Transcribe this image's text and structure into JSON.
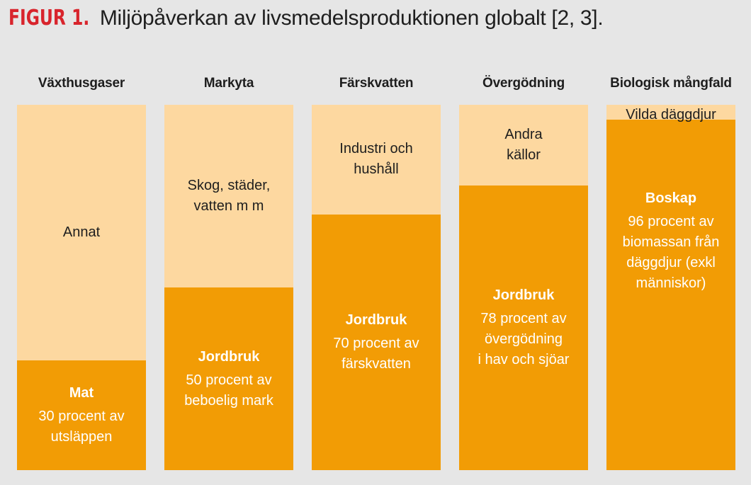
{
  "title": {
    "label": "FIGUR 1.",
    "text": "Miljöpåverkan av livsmedelsproduktionen globalt [2, 3]."
  },
  "colors": {
    "accent_red": "#d8242c",
    "dark_orange": "#f29c05",
    "light_orange": "#fdd8a0",
    "background": "#e6e6e6"
  },
  "chart_data": {
    "type": "bar",
    "stacked": true,
    "ylim": [
      0,
      100
    ],
    "categories": [
      "Växthusgaser",
      "Markyta",
      "Färskvatten",
      "Övergödning",
      "Biologisk mångfald"
    ],
    "series": [
      {
        "label_head": [
          "Mat",
          "Jordbruk",
          "Jordbruk",
          "Jordbruk",
          "Boskap"
        ],
        "label_lines": [
          [
            "30 procent av",
            "utsläppen"
          ],
          [
            "50 procent av",
            "beboelig mark"
          ],
          [
            "70 procent av",
            "färskvatten"
          ],
          [
            "78 procent av",
            "övergödning",
            "i hav och sjöar"
          ],
          [
            "96 procent av",
            "biomassan från",
            "däggdjur (exkl",
            "människor)"
          ]
        ],
        "values": [
          30,
          50,
          70,
          78,
          96
        ]
      },
      {
        "label_lines": [
          [
            "Annat"
          ],
          [
            "Skog, städer,",
            "vatten m m"
          ],
          [
            "Industri och",
            "hushåll"
          ],
          [
            "Andra",
            "källor"
          ],
          [
            "Vilda däggdjur"
          ]
        ],
        "values": [
          70,
          50,
          30,
          22,
          4
        ]
      }
    ]
  }
}
